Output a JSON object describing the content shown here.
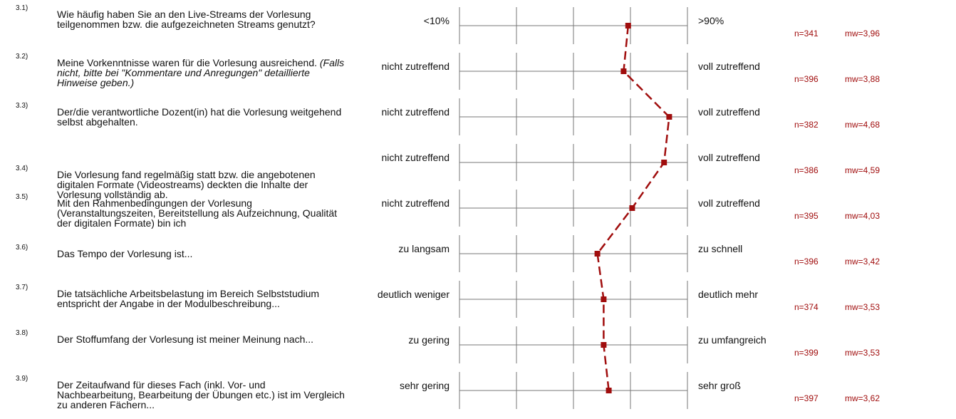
{
  "chart_data": {
    "type": "profile",
    "color": "#a00d0d",
    "xlim": [
      1,
      5
    ],
    "xticks": [
      1,
      2,
      3,
      4,
      5
    ],
    "items": [
      {
        "number": "3.1)",
        "question": "Wie häufig haben Sie an den Live-Streams der Vorlesung teilgenommen bzw. die aufgezeichneten Streams genutzt?",
        "left": "<10%",
        "right": ">90%",
        "n_label": "n=341",
        "mean": 3.96,
        "mean_label": "mw=3,96"
      },
      {
        "number": "3.2)",
        "question": "Meine Vorkenntnisse waren für die Vorlesung ausreichend.",
        "question_note": "(Falls nicht, bitte bei \"Kommentare und Anregungen\" detaillierte Hinweise geben.)",
        "left": "nicht zutreffend",
        "right": "voll zutreffend",
        "n_label": "n=396",
        "mean": 3.88,
        "mean_label": "mw=3,88"
      },
      {
        "number": "3.3)",
        "question": "Der/die verantwortliche Dozent(in) hat die Vorlesung weitgehend selbst abgehalten.",
        "left": "nicht zutreffend",
        "right": "voll zutreffend",
        "n_label": "n=382",
        "mean": 4.68,
        "mean_label": "mw=4,68"
      },
      {
        "number": "3.4)",
        "question": "Die Vorlesung fand regelmäßig statt bzw. die angebotenen digitalen Formate (Videostreams) deckten die Inhalte der Vorlesung vollständig ab.",
        "left": "nicht zutreffend",
        "right": "voll zutreffend",
        "n_label": "n=386",
        "mean": 4.59,
        "mean_label": "mw=4,59"
      },
      {
        "number": "3.5)",
        "question": "Mit den Rahmenbedingungen der Vorlesung (Veranstaltungszeiten, Bereitstellung als Aufzeichnung, Qualität der digitalen Formate) bin ich",
        "left": "nicht zutreffend",
        "right": "voll zutreffend",
        "n_label": "n=395",
        "mean": 4.03,
        "mean_label": "mw=4,03"
      },
      {
        "number": "3.6)",
        "question": "Das Tempo der Vorlesung ist...",
        "left": "zu langsam",
        "right": "zu schnell",
        "n_label": "n=396",
        "mean": 3.42,
        "mean_label": "mw=3,42"
      },
      {
        "number": "3.7)",
        "question": "Die tatsächliche Arbeitsbelastung im Bereich Selbststudium entspricht der Angabe in der Modulbeschreibung...",
        "left": "deutlich weniger",
        "right": "deutlich mehr",
        "n_label": "n=374",
        "mean": 3.53,
        "mean_label": "mw=3,53"
      },
      {
        "number": "3.8)",
        "question": "Der Stoffumfang der Vorlesung ist meiner Meinung nach...",
        "left": "zu gering",
        "right": "zu umfangreich",
        "n_label": "n=399",
        "mean": 3.53,
        "mean_label": "mw=3,53"
      },
      {
        "number": "3.9)",
        "question": "Der Zeitaufwand für dieses Fach (inkl. Vor- und Nachbearbeitung, Bearbeitung der Übungen etc.) ist im Vergleich zu anderen Fächern...",
        "left": "sehr gering",
        "right": "sehr groß",
        "n_label": "n=397",
        "mean": 3.62,
        "mean_label": "mw=3,62"
      }
    ]
  }
}
